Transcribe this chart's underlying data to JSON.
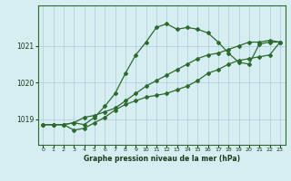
{
  "title": "Graphe pression niveau de la mer (hPa)",
  "bg_color": "#d6eef2",
  "grid_color": "#aaccd8",
  "line_color": "#2d6a2d",
  "text_color": "#1a3a1a",
  "xlim": [
    -0.5,
    23.5
  ],
  "ylim": [
    1018.3,
    1022.1
  ],
  "yticks": [
    1019,
    1020,
    1021
  ],
  "xticks": [
    0,
    1,
    2,
    3,
    4,
    5,
    6,
    7,
    8,
    9,
    10,
    11,
    12,
    13,
    14,
    15,
    16,
    17,
    18,
    19,
    20,
    21,
    22,
    23
  ],
  "series": [
    [
      1018.85,
      1018.85,
      1018.85,
      1018.9,
      1018.85,
      1019.05,
      1019.35,
      1019.7,
      1020.25,
      1020.75,
      1021.1,
      1021.5,
      1021.6,
      1021.45,
      1021.5,
      1021.45,
      1021.35,
      1021.1,
      1020.8,
      1020.55,
      1020.5,
      1021.05,
      1021.1,
      1021.1
    ],
    [
      1018.85,
      1018.85,
      1018.85,
      1018.9,
      1019.05,
      1019.1,
      1019.2,
      1019.3,
      1019.5,
      1019.7,
      1019.9,
      1020.05,
      1020.2,
      1020.35,
      1020.5,
      1020.65,
      1020.75,
      1020.8,
      1020.9,
      1021.0,
      1021.1,
      1021.1,
      1021.15,
      1021.1
    ],
    [
      1018.85,
      1018.85,
      1018.85,
      1018.7,
      1018.75,
      1018.9,
      1019.05,
      1019.25,
      1019.4,
      1019.5,
      1019.6,
      1019.65,
      1019.7,
      1019.8,
      1019.9,
      1020.05,
      1020.25,
      1020.35,
      1020.5,
      1020.6,
      1020.65,
      1020.7,
      1020.75,
      1021.1
    ]
  ]
}
